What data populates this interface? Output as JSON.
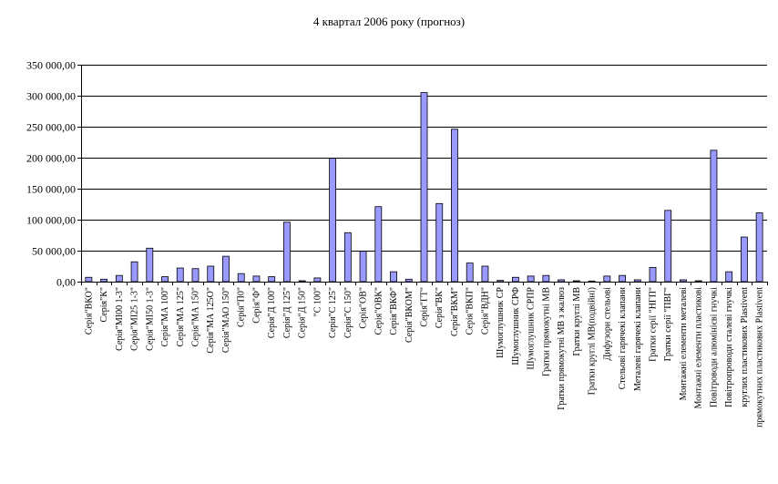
{
  "chart_data": {
    "type": "bar",
    "title": "4 квартал 2006 року (прогноз)",
    "xlabel": "",
    "ylabel": "",
    "ylim": [
      0,
      350000
    ],
    "yticks": [
      0,
      50000,
      100000,
      150000,
      200000,
      250000,
      300000,
      350000
    ],
    "ytick_labels": [
      "0,00",
      "50 000,00",
      "100 000,00",
      "150 000,00",
      "200 000,00",
      "250 000,00",
      "300 000,00",
      "350 000,00"
    ],
    "grid": true,
    "legend": "none",
    "bar_color": "#9999ff",
    "categories": [
      "Серія\"ВКО\"",
      "Серія\"К\"",
      "Серія\"МІ00 1-3\"",
      "Серія\"МІ25 1-3\"",
      "Серія\"МІ50 1-3\"",
      "Серія\"МА 100\"",
      "Серія\"МА 125\"",
      "Серія\"МА 150\"",
      "Серія\"МА 125О\"",
      "Серія\"МАО 150\"",
      "Серія\"П0\"",
      "Серія\"Ф\"",
      "Серія\"Д 100\"",
      "Серія\"Д 125\"",
      "Серія\"Д 150\"",
      "\"С 100\"",
      "Серія\"С 125\"",
      "Серія\"С 150\"",
      "Серія\"ОВ\"",
      "Серія\"ОВК\"",
      "Серія\"ВКФ\"",
      "Серія\"ВКОМ\"",
      "Серія\"ГТ\"",
      "Серія\"ВК\"",
      "Серія\"ВКМ\"",
      "Серія\"ВКП\"",
      "Серія\"ВДН\"",
      "Шумоглушник СР",
      "Шумоглушник СРФ",
      "Шумоглушник СРПР",
      "Гратки прямокутні МВ",
      "Гратки прямокутні МВ з жалюз",
      "Гратки круглі МВ",
      "Гратки круглі МВ(подвійні)",
      "Дифузори стельові",
      "Стельові гарячекі клапани",
      "Металеві гарячекі клапани",
      "Гратки серії \"НГП\"",
      "Гратки серії \"ПВГ\"",
      "Монтажні елементи металеві",
      "Монтажні елементи пластикові",
      "Повітроводи алюмінієві гнучкі",
      "Повітропроводи сталеві гнучкі",
      "круглих пластикових Plastivent",
      "прямокутних пластикових Plastivent"
    ],
    "values": [
      7000,
      4000,
      10000,
      32000,
      54000,
      8000,
      22000,
      21000,
      25000,
      41000,
      13000,
      9000,
      8000,
      96000,
      1500,
      6000,
      199000,
      79000,
      49000,
      121000,
      16000,
      4000,
      305000,
      126000,
      246000,
      30000,
      25000,
      2000,
      7000,
      9000,
      10000,
      3000,
      1500,
      1000,
      9000,
      10000,
      3000,
      23000,
      115000,
      3000,
      1500,
      212000,
      16000,
      72000,
      111000
    ]
  }
}
